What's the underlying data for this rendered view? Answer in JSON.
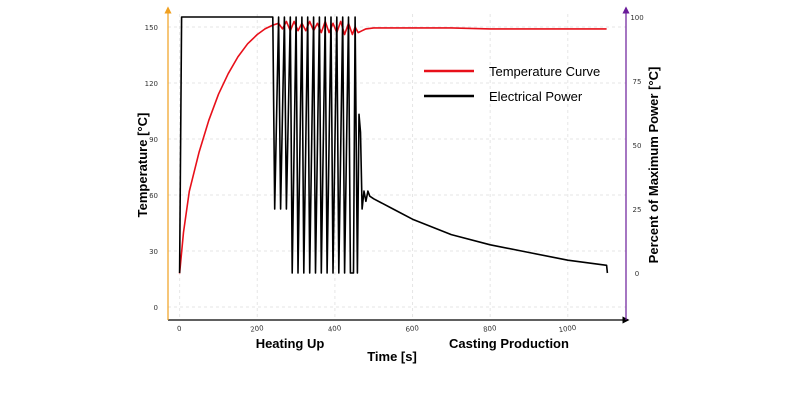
{
  "chart_data": {
    "type": "line",
    "xlabel": "Time [s]",
    "ylabel_left": "Temperature [°C]",
    "ylabel_right": "Percent of Maximum Power [°C]",
    "xlim": [
      -30,
      1150
    ],
    "ylim_left": [
      0,
      155
    ],
    "ylim_right": [
      -20,
      100
    ],
    "x_ticks": [
      0,
      200,
      400,
      600,
      800,
      1000
    ],
    "y_left_ticks": [
      0,
      30,
      60,
      90,
      120,
      150
    ],
    "y_right_ticks": [
      0,
      25,
      50,
      75,
      100
    ],
    "grid": true,
    "legend_position": "upper-right",
    "phase_labels": [
      "Heating Up",
      "Casting Production"
    ],
    "colors": {
      "temperature": "#e8101a",
      "power": "#000000",
      "left_axis": "#f0a020",
      "right_axis": "#6a1b9a"
    },
    "series": [
      {
        "name": "Temperature Curve",
        "axis": "left",
        "x": [
          0,
          10,
          25,
          50,
          75,
          100,
          125,
          150,
          175,
          200,
          220,
          240,
          255,
          265,
          275,
          285,
          295,
          305,
          315,
          325,
          335,
          345,
          355,
          365,
          375,
          385,
          395,
          405,
          415,
          425,
          435,
          445,
          452,
          460,
          470,
          480,
          500,
          550,
          600,
          700,
          800,
          900,
          1000,
          1100
        ],
        "y": [
          18,
          40,
          62,
          83,
          100,
          114,
          125,
          134,
          141,
          146,
          149,
          151,
          152,
          149,
          153,
          148,
          153,
          148,
          152,
          148,
          153,
          148,
          152,
          147,
          153,
          147,
          152,
          147,
          153,
          146,
          152,
          146,
          150,
          147,
          148,
          149,
          149.5,
          149.5,
          149.5,
          149.5,
          149,
          149,
          149,
          149
        ]
      },
      {
        "name": "Electrical Power",
        "axis": "right",
        "x": [
          0,
          5,
          240,
          245,
          255,
          260,
          270,
          275,
          285,
          290,
          300,
          305,
          315,
          320,
          330,
          335,
          345,
          350,
          360,
          365,
          375,
          380,
          390,
          395,
          405,
          410,
          420,
          425,
          435,
          440,
          448,
          452,
          458,
          462,
          466,
          470,
          475,
          480,
          485,
          490,
          500,
          550,
          600,
          700,
          800,
          900,
          1000,
          1100,
          1102
        ],
        "y": [
          0,
          100,
          100,
          25,
          100,
          25,
          100,
          25,
          100,
          0,
          100,
          0,
          100,
          0,
          100,
          0,
          100,
          0,
          100,
          0,
          100,
          0,
          100,
          0,
          100,
          0,
          100,
          0,
          100,
          0,
          0,
          100,
          0,
          62,
          55,
          25,
          32,
          28,
          32,
          30,
          29,
          25,
          21,
          15,
          11,
          8,
          5,
          3,
          0
        ]
      }
    ]
  }
}
